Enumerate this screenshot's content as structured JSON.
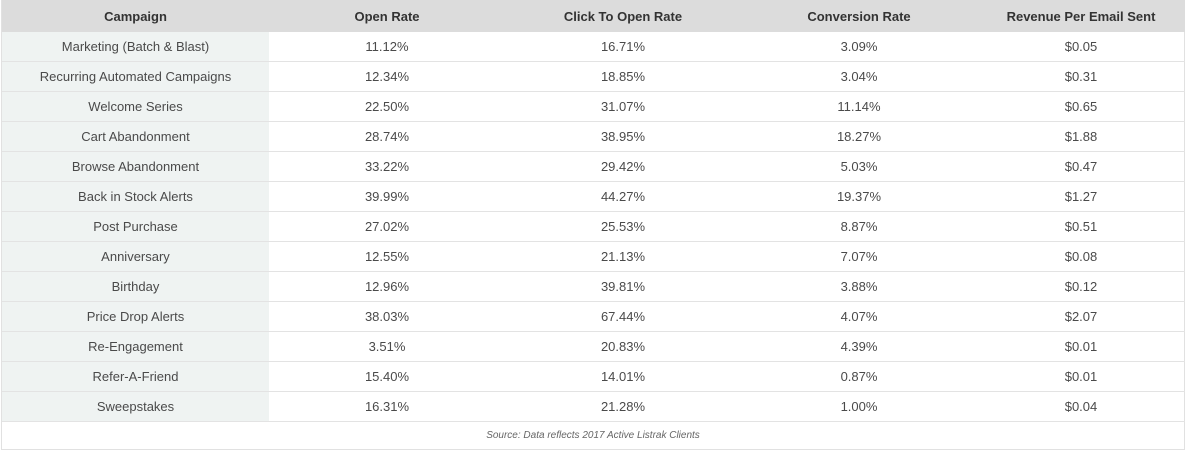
{
  "table": {
    "headers": [
      "Campaign",
      "Open Rate",
      "Click To Open Rate",
      "Conversion Rate",
      "Revenue Per Email Sent"
    ],
    "rows": [
      [
        "Marketing (Batch & Blast)",
        "11.12%",
        "16.71%",
        "3.09%",
        "$0.05"
      ],
      [
        "Recurring Automated Campaigns",
        "12.34%",
        "18.85%",
        "3.04%",
        "$0.31"
      ],
      [
        "Welcome Series",
        "22.50%",
        "31.07%",
        "11.14%",
        "$0.65"
      ],
      [
        "Cart Abandonment",
        "28.74%",
        "38.95%",
        "18.27%",
        "$1.88"
      ],
      [
        "Browse Abandonment",
        "33.22%",
        "29.42%",
        "5.03%",
        "$0.47"
      ],
      [
        "Back in Stock Alerts",
        "39.99%",
        "44.27%",
        "19.37%",
        "$1.27"
      ],
      [
        "Post Purchase",
        "27.02%",
        "25.53%",
        "8.87%",
        "$0.51"
      ],
      [
        "Anniversary",
        "12.55%",
        "21.13%",
        "7.07%",
        "$0.08"
      ],
      [
        "Birthday",
        "12.96%",
        "39.81%",
        "3.88%",
        "$0.12"
      ],
      [
        "Price Drop Alerts",
        "38.03%",
        "67.44%",
        "4.07%",
        "$2.07"
      ],
      [
        "Re-Engagement",
        "3.51%",
        "20.83%",
        "4.39%",
        "$0.01"
      ],
      [
        "Refer-A-Friend",
        "15.40%",
        "14.01%",
        "0.87%",
        "$0.01"
      ],
      [
        "Sweepstakes",
        "16.31%",
        "21.28%",
        "1.00%",
        "$0.04"
      ]
    ],
    "source": "Source: Data reflects 2017 Active Listrak Clients"
  },
  "colors": {
    "header_bg": "#dcdcdc",
    "first_col_bg": "#eff3f2",
    "row_border": "#e3e3e3",
    "text": "#4a4a4a"
  }
}
